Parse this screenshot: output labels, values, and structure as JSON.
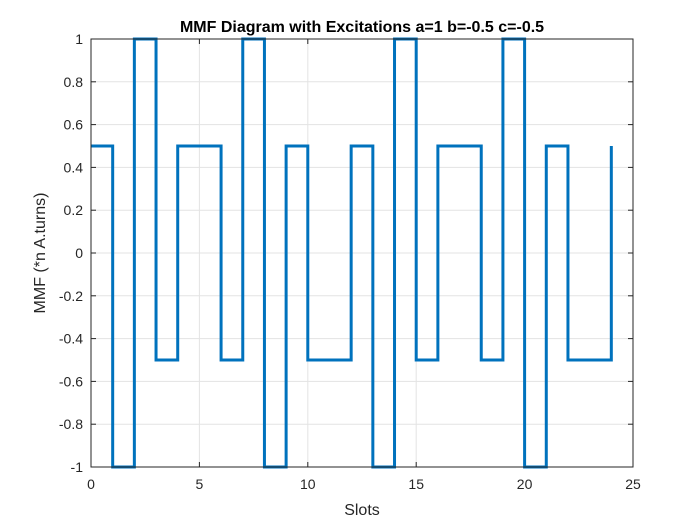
{
  "chart_data": {
    "type": "line",
    "title": "MMF Diagram with Excitations a=1 b=-0.5 c=-0.5",
    "xlabel": "Slots",
    "ylabel": "MMF (*n A.turns)",
    "xlim": [
      0,
      25
    ],
    "ylim": [
      -1,
      1
    ],
    "xticks": [
      0,
      5,
      10,
      15,
      20,
      25
    ],
    "yticks": [
      -1,
      -0.8,
      -0.6,
      -0.4,
      -0.2,
      0,
      0.2,
      0.4,
      0.6,
      0.8,
      1
    ],
    "xtick_labels": [
      "0",
      "5",
      "10",
      "15",
      "20",
      "25"
    ],
    "ytick_labels": [
      "-1",
      "-0.8",
      "-0.6",
      "-0.4",
      "-0.2",
      "0",
      "0.2",
      "0.4",
      "0.6",
      "0.8",
      "1"
    ],
    "grid": true,
    "step": true,
    "series": [
      {
        "color": "#0072BD",
        "x": [
          0,
          1,
          2,
          3,
          4,
          5,
          6,
          7,
          8,
          9,
          10,
          11,
          12,
          13,
          14,
          15,
          16,
          17,
          18,
          19,
          20,
          21,
          22,
          23,
          24
        ],
        "values": [
          0.5,
          -1,
          1,
          -0.5,
          0.5,
          0.5,
          -0.5,
          1,
          -1,
          0.5,
          -0.5,
          -0.5,
          0.5,
          -1,
          1,
          -0.5,
          0.5,
          0.5,
          -0.5,
          1,
          -1,
          0.5,
          -0.5,
          -0.5,
          0.5
        ]
      }
    ]
  }
}
